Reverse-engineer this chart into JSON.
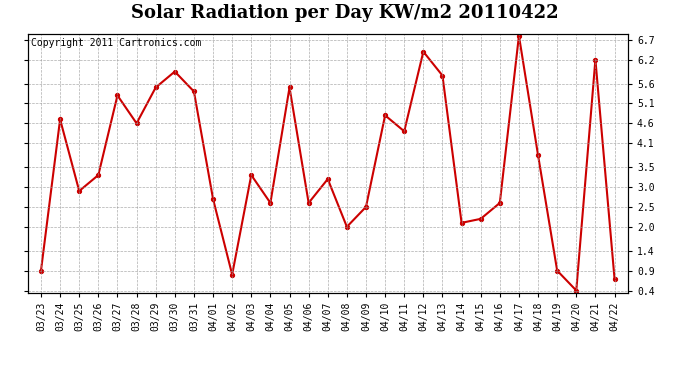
{
  "title": "Solar Radiation per Day KW/m2 20110422",
  "copyright": "Copyright 2011 Cartronics.com",
  "labels": [
    "03/23",
    "03/24",
    "03/25",
    "03/26",
    "03/27",
    "03/28",
    "03/29",
    "03/30",
    "03/31",
    "04/01",
    "04/02",
    "04/03",
    "04/04",
    "04/05",
    "04/06",
    "04/07",
    "04/08",
    "04/09",
    "04/10",
    "04/11",
    "04/12",
    "04/13",
    "04/14",
    "04/15",
    "04/16",
    "04/17",
    "04/18",
    "04/19",
    "04/20",
    "04/21",
    "04/22"
  ],
  "values": [
    0.9,
    4.7,
    2.9,
    3.3,
    5.3,
    4.6,
    5.5,
    5.9,
    5.4,
    2.7,
    0.8,
    3.3,
    2.6,
    5.5,
    2.6,
    3.2,
    2.0,
    2.5,
    4.8,
    4.4,
    6.4,
    5.8,
    2.1,
    2.2,
    2.6,
    6.8,
    3.8,
    0.9,
    0.4,
    6.2,
    0.7
  ],
  "line_color": "#cc0000",
  "marker": "o",
  "marker_size": 3,
  "ylim_min": 0.35,
  "ylim_max": 6.85,
  "right_ytick_positions": [
    0.4,
    0.9,
    1.4,
    2.0,
    2.5,
    3.0,
    3.5,
    4.1,
    4.6,
    5.1,
    5.6,
    6.2,
    6.7
  ],
  "right_ytick_labels": [
    "0.4",
    "0.9",
    "1.4",
    "2.0",
    "2.5",
    "3.0",
    "3.5",
    "4.1",
    "4.6",
    "5.1",
    "5.6",
    "6.2",
    "6.7"
  ],
  "grid_color": "#999999",
  "bg_color": "#ffffff",
  "title_fontsize": 13,
  "copyright_fontsize": 7,
  "tick_fontsize": 7,
  "linewidth": 1.5
}
